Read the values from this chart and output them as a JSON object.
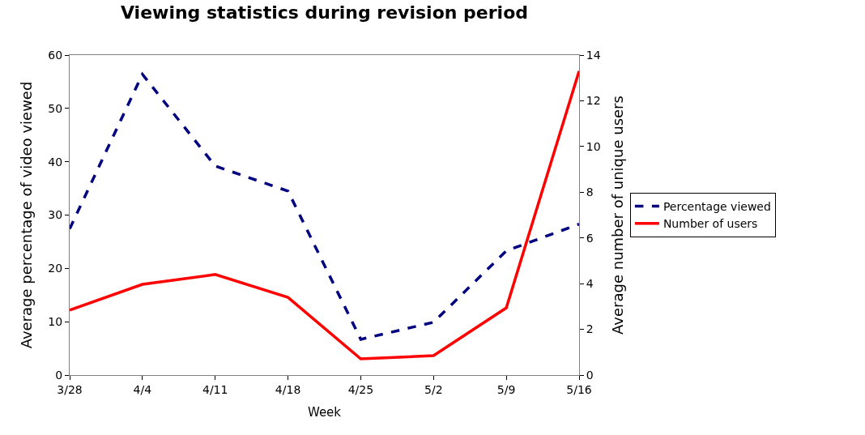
{
  "chart_data": {
    "type": "line",
    "title": "Viewing statistics during revision period",
    "xlabel": "Week",
    "ylabel": "Average percentage of video viewed",
    "y2label": "Average number of unique users",
    "categories": [
      "3/28",
      "4/4",
      "4/11",
      "4/18",
      "4/25",
      "5/2",
      "5/9",
      "5/16"
    ],
    "series": [
      {
        "name": "Percentage viewed",
        "color": "#000080",
        "line_style": "dashed",
        "values": [
          27.4,
          56.4,
          39.2,
          34.5,
          6.7,
          9.9,
          23.3,
          28.3
        ]
      },
      {
        "name": "Number of users",
        "color": "#ff0000",
        "line_style": "solid",
        "axis": "y2",
        "values": [
          2.84,
          3.97,
          4.4,
          3.4,
          0.71,
          0.85,
          2.94,
          13.3
        ]
      }
    ],
    "ylim": [
      0,
      60
    ],
    "yticks": [
      0,
      10,
      20,
      30,
      40,
      50,
      60
    ],
    "y2lim": [
      0,
      14
    ],
    "y2ticks": [
      0,
      2,
      4,
      6,
      8,
      10,
      12,
      14
    ],
    "legend": "right",
    "marker": "none"
  }
}
